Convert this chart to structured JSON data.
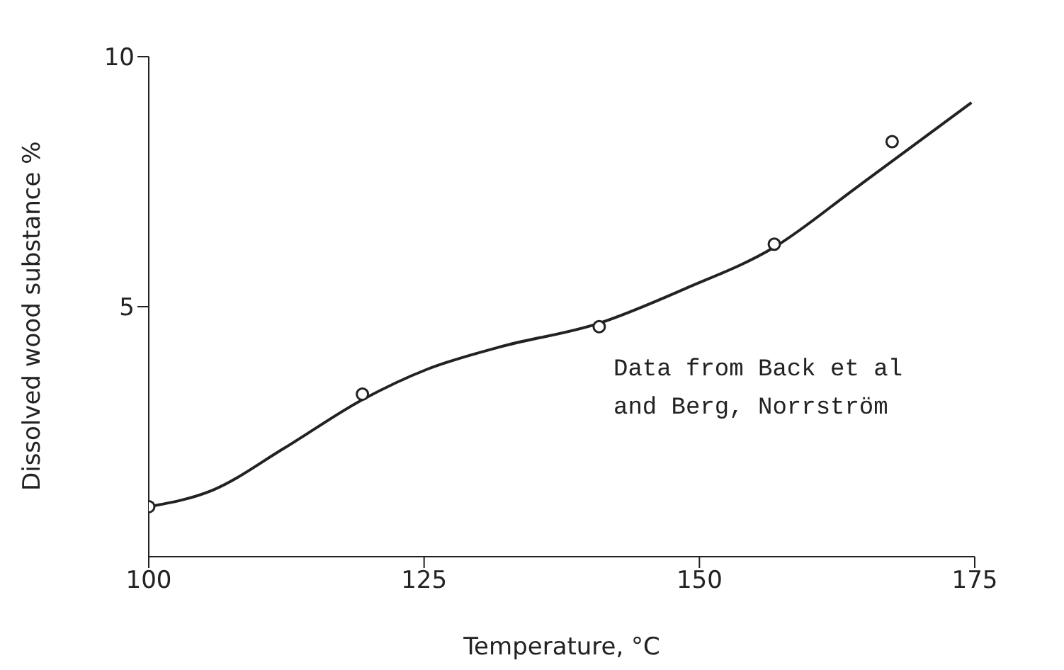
{
  "chart_data": {
    "type": "scatter",
    "xlabel": "Temperature, °C",
    "ylabel": "Dissolved wood substance %",
    "xlim": [
      100,
      175
    ],
    "ylim": [
      0,
      10
    ],
    "xticks": [
      100,
      125,
      150,
      175
    ],
    "yticks": [
      5,
      10
    ],
    "grid": false,
    "legend": false,
    "annotations": [
      "Data from Back et al\nand Berg, Norrström"
    ],
    "series": [
      {
        "marker": "circle",
        "color": "#222222",
        "x": [
          100,
          119.4,
          140.9,
          156.8,
          167.5
        ],
        "values": [
          1.0,
          3.25,
          4.6,
          6.25,
          8.3
        ]
      },
      {
        "type": "line",
        "marker": "none",
        "color": "#222222",
        "x": [
          100,
          105.8,
          112.3,
          119.4,
          125.3,
          131.8,
          140.9,
          148.7,
          156.8,
          164.3,
          174.7
        ],
        "values": [
          1.0,
          1.33,
          2.17,
          3.14,
          3.75,
          4.19,
          4.67,
          5.36,
          6.19,
          7.39,
          9.08
        ]
      }
    ]
  }
}
